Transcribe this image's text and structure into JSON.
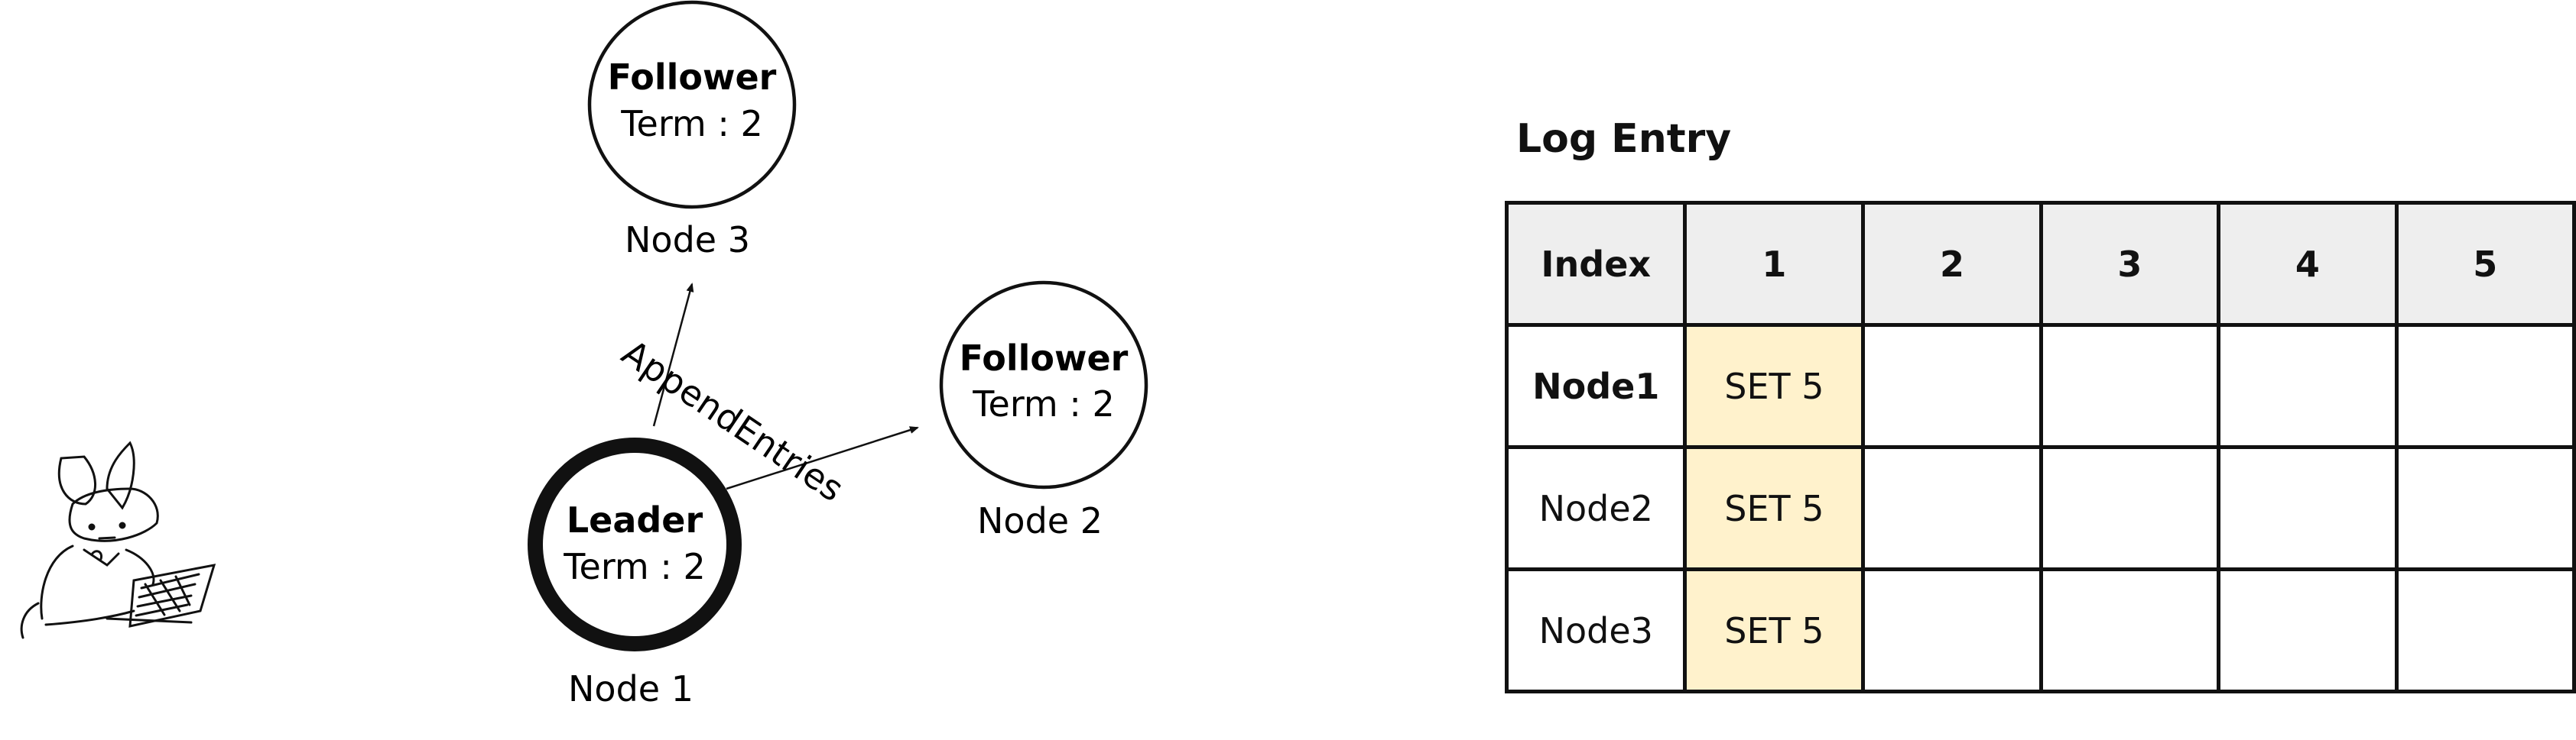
{
  "nodes": {
    "leader": {
      "role": "Leader",
      "term": "Term : 2",
      "name": "Node 1"
    },
    "follower2": {
      "role": "Follower",
      "term": "Term : 2",
      "name": "Node 2"
    },
    "follower3": {
      "role": "Follower",
      "term": "Term : 2",
      "name": "Node 3"
    }
  },
  "edge_label": "AppendEntries",
  "log": {
    "title": "Log Entry",
    "header": [
      "Index",
      "1",
      "2",
      "3",
      "4",
      "5"
    ],
    "rows": [
      {
        "node": "Node1",
        "entries": [
          "SET 5",
          "",
          "",
          "",
          ""
        ]
      },
      {
        "node": "Node2",
        "entries": [
          "SET 5",
          "",
          "",
          "",
          ""
        ]
      },
      {
        "node": "Node3",
        "entries": [
          "SET 5",
          "",
          "",
          "",
          ""
        ]
      }
    ]
  },
  "colors": {
    "stroke": "#111111",
    "header_fill": "#eeeeee",
    "entry_fill": "#fff2cc"
  }
}
